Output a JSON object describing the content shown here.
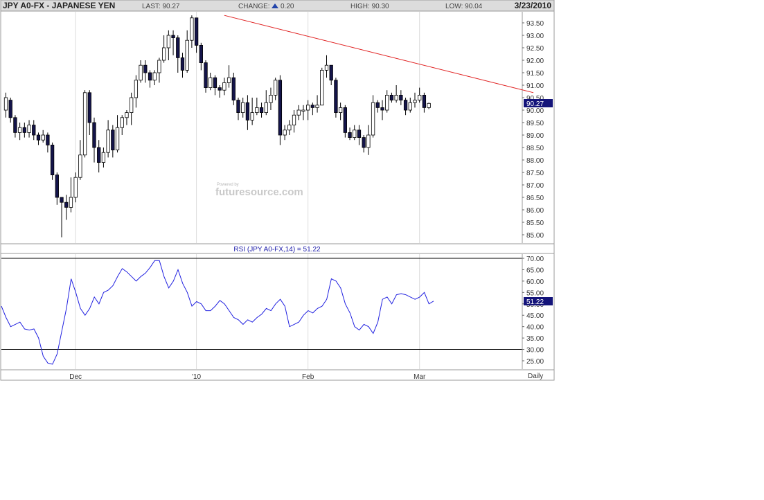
{
  "header": {
    "symbol": "JPY A0-FX - JAPANESE YEN",
    "last_label": "LAST:",
    "last_value": "90.27",
    "change_label": "CHANGE:",
    "change_value": "0.20",
    "high_label": "HIGH:",
    "high_value": "90.30",
    "low_label": "LOW:",
    "low_value": "90.04",
    "date": "3/23/2010"
  },
  "watermark": {
    "small": "Powered by",
    "brand": "futuresource.com"
  },
  "rsi_title": "RSI (JPY A0-FX,14) = 51.22",
  "period_label": "Daily",
  "colors": {
    "header_bg": "#dcdcdc",
    "text": "#333333",
    "up_candle": "#ffffff",
    "down_candle": "#14144a",
    "trendline": "#e02020",
    "rsi_line": "#2020e0",
    "tag_bg": "#14147a",
    "grid": "#dcdcdc",
    "up_arrow": "#2244aa"
  },
  "chart_data": [
    {
      "type": "candlestick",
      "ylim": [
        84.5,
        94.0
      ],
      "yticks": [
        "85.00",
        "85.50",
        "86.00",
        "86.50",
        "87.00",
        "87.50",
        "88.00",
        "88.50",
        "89.00",
        "89.50",
        "90.00",
        "90.50",
        "91.00",
        "91.50",
        "92.00",
        "92.50",
        "93.00",
        "93.50"
      ],
      "xticks": [
        {
          "label": "Dec",
          "index": 15
        },
        {
          "label": "'10",
          "index": 41
        },
        {
          "label": "Feb",
          "index": 65
        },
        {
          "label": "Mar",
          "index": 89
        }
      ],
      "last_price_tag": "90.27",
      "trendline": [
        {
          "index": 47,
          "price": 93.8
        },
        {
          "index": 113.5,
          "price": 90.7
        }
      ],
      "candles": [
        [
          90.0,
          90.5,
          90.7,
          89.7
        ],
        [
          90.4,
          89.7,
          90.5,
          89.5
        ],
        [
          89.7,
          89.1,
          89.8,
          88.9
        ],
        [
          89.1,
          89.3,
          89.5,
          88.8
        ],
        [
          89.3,
          89.1,
          89.5,
          88.9
        ],
        [
          89.1,
          89.4,
          89.6,
          88.9
        ],
        [
          89.4,
          89.0,
          89.6,
          88.8
        ],
        [
          89.0,
          88.8,
          89.1,
          88.6
        ],
        [
          88.8,
          89.0,
          89.2,
          88.7
        ],
        [
          89.0,
          88.6,
          89.1,
          88.3
        ],
        [
          88.6,
          87.4,
          88.7,
          87.2
        ],
        [
          87.4,
          86.5,
          87.5,
          86.2
        ],
        [
          86.5,
          86.3,
          86.5,
          84.9
        ],
        [
          86.3,
          86.1,
          86.6,
          85.6
        ],
        [
          86.1,
          86.5,
          87.3,
          85.9
        ],
        [
          86.5,
          87.3,
          87.5,
          86.3
        ],
        [
          87.3,
          88.2,
          88.8,
          87.2
        ],
        [
          88.2,
          90.7,
          90.8,
          88.1
        ],
        [
          90.7,
          89.5,
          90.8,
          89.0
        ],
        [
          89.5,
          88.5,
          89.7,
          87.9
        ],
        [
          88.5,
          87.9,
          88.8,
          87.5
        ],
        [
          87.9,
          88.3,
          88.5,
          87.7
        ],
        [
          88.3,
          89.2,
          89.6,
          88.1
        ],
        [
          89.2,
          88.4,
          89.4,
          88.1
        ],
        [
          88.4,
          89.3,
          89.8,
          88.3
        ],
        [
          89.3,
          89.7,
          89.8,
          89.0
        ],
        [
          89.7,
          89.9,
          90.0,
          89.4
        ],
        [
          89.9,
          90.5,
          90.7,
          89.4
        ],
        [
          90.5,
          91.2,
          91.4,
          90.1
        ],
        [
          91.2,
          91.8,
          92.0,
          91.1
        ],
        [
          91.8,
          91.5,
          92.0,
          91.1
        ],
        [
          91.5,
          91.2,
          91.6,
          90.9
        ],
        [
          91.2,
          91.5,
          91.6,
          91.0
        ],
        [
          91.5,
          92.0,
          92.1,
          91.1
        ],
        [
          92.0,
          92.5,
          93.0,
          91.9
        ],
        [
          92.5,
          93.0,
          93.2,
          92.0
        ],
        [
          93.0,
          92.9,
          93.2,
          92.2
        ],
        [
          92.9,
          92.1,
          93.0,
          91.5
        ],
        [
          92.1,
          91.6,
          92.3,
          91.3
        ],
        [
          91.6,
          92.8,
          93.2,
          91.5
        ],
        [
          92.8,
          93.7,
          93.8,
          92.5
        ],
        [
          93.7,
          92.6,
          93.7,
          92.3
        ],
        [
          92.6,
          91.9,
          92.7,
          91.6
        ],
        [
          91.9,
          90.9,
          92.0,
          90.7
        ],
        [
          90.9,
          91.3,
          91.5,
          90.8
        ],
        [
          91.3,
          90.9,
          91.4,
          90.6
        ],
        [
          90.9,
          90.8,
          91.0,
          90.5
        ],
        [
          90.8,
          91.1,
          91.3,
          90.6
        ],
        [
          91.1,
          91.3,
          91.8,
          90.9
        ],
        [
          91.3,
          90.4,
          91.5,
          90.2
        ],
        [
          90.4,
          89.9,
          90.5,
          89.6
        ],
        [
          89.9,
          90.3,
          90.5,
          89.7
        ],
        [
          90.3,
          89.6,
          90.6,
          89.2
        ],
        [
          89.6,
          89.9,
          90.5,
          89.4
        ],
        [
          89.9,
          90.1,
          90.5,
          89.8
        ],
        [
          90.1,
          89.9,
          90.3,
          89.7
        ],
        [
          89.9,
          90.3,
          90.8,
          89.8
        ],
        [
          90.3,
          90.6,
          90.9,
          90.0
        ],
        [
          90.6,
          91.2,
          91.3,
          90.4
        ],
        [
          91.2,
          89.0,
          91.4,
          88.6
        ],
        [
          89.0,
          89.2,
          89.4,
          88.8
        ],
        [
          89.2,
          89.4,
          89.6,
          89.0
        ],
        [
          89.4,
          89.8,
          90.0,
          89.1
        ],
        [
          89.8,
          90.0,
          90.2,
          89.6
        ],
        [
          90.0,
          90.0,
          90.2,
          89.6
        ],
        [
          90.0,
          90.2,
          90.4,
          89.6
        ],
        [
          90.2,
          90.1,
          90.3,
          89.8
        ],
        [
          90.1,
          90.2,
          90.6,
          89.9
        ],
        [
          90.2,
          91.6,
          91.7,
          90.2
        ],
        [
          91.6,
          91.8,
          92.2,
          91.3
        ],
        [
          91.8,
          91.2,
          91.8,
          91.0
        ],
        [
          91.2,
          89.9,
          91.3,
          89.7
        ],
        [
          89.9,
          90.1,
          90.3,
          89.6
        ],
        [
          90.1,
          89.1,
          90.2,
          88.9
        ],
        [
          89.1,
          88.9,
          89.3,
          88.8
        ],
        [
          88.9,
          89.2,
          89.4,
          88.8
        ],
        [
          89.2,
          88.9,
          89.4,
          88.6
        ],
        [
          88.9,
          88.5,
          89.0,
          88.3
        ],
        [
          88.5,
          89.0,
          89.4,
          88.2
        ],
        [
          89.0,
          90.3,
          90.6,
          88.9
        ],
        [
          90.3,
          90.1,
          90.4,
          89.9
        ],
        [
          90.1,
          90.0,
          90.4,
          89.6
        ],
        [
          90.0,
          90.6,
          90.8,
          89.9
        ],
        [
          90.6,
          90.4,
          90.7,
          90.3
        ],
        [
          90.4,
          90.6,
          91.0,
          90.3
        ],
        [
          90.6,
          90.4,
          90.8,
          90.2
        ],
        [
          90.4,
          90.0,
          90.5,
          89.8
        ],
        [
          90.0,
          90.3,
          90.5,
          89.9
        ],
        [
          90.3,
          90.4,
          90.7,
          90.1
        ],
        [
          90.4,
          90.6,
          90.9,
          90.3
        ],
        [
          90.6,
          90.1,
          90.7,
          89.9
        ],
        [
          90.1,
          90.27,
          90.3,
          90.04
        ]
      ]
    },
    {
      "type": "line",
      "title": "RSI (JPY A0-FX,14) = 51.22",
      "ylim": [
        22.5,
        72.0
      ],
      "yticks": [
        "25.00",
        "30.00",
        "35.00",
        "40.00",
        "45.00",
        "50.00",
        "55.00",
        "60.00",
        "65.00",
        "70.00"
      ],
      "ref_lines": [
        30,
        70
      ],
      "last_value_tag": "51.22",
      "series": [
        {
          "values": [
            49,
            44,
            40,
            41,
            42,
            39,
            38.5,
            39,
            35,
            27,
            24,
            23.5,
            28,
            38,
            48,
            61,
            55,
            48,
            45,
            48,
            53,
            50,
            55,
            56,
            58,
            62,
            65.5,
            64,
            62,
            60,
            62,
            63.5,
            66,
            69,
            69,
            62,
            57,
            60,
            65,
            59,
            55,
            49,
            51,
            50,
            47,
            47,
            49,
            51.5,
            50,
            47,
            44,
            43,
            41,
            43,
            42,
            44,
            45.5,
            48,
            47,
            50,
            52,
            49,
            40,
            41,
            42,
            45,
            47,
            46,
            48,
            49,
            52,
            61,
            60,
            57,
            50,
            46,
            40,
            38.5,
            41,
            40,
            37,
            42,
            52,
            53,
            50,
            54,
            54.5,
            54,
            53,
            52,
            53,
            55,
            50,
            51.22
          ]
        }
      ]
    }
  ]
}
